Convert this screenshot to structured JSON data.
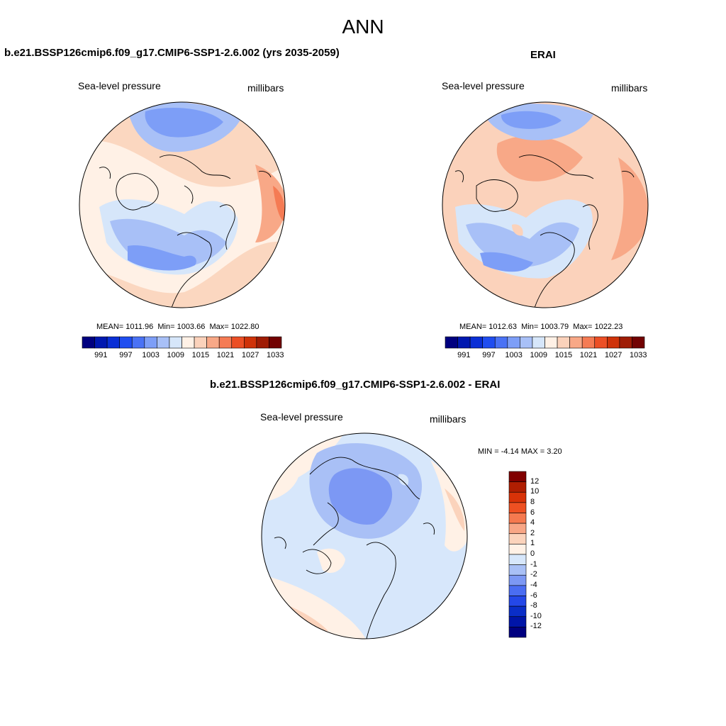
{
  "figure": {
    "title": "ANN"
  },
  "panels": [
    {
      "id": "model",
      "title": "b.e21.BSSP126cmip6.f09_g17.CMIP6-SSP1-2.6.002 (yrs 2035-2059)",
      "variable": "Sea-level pressure",
      "units": "millibars",
      "stats": {
        "mean_label": "MEAN=",
        "mean": "1011.96",
        "min_label": "Min=",
        "min": "1003.66",
        "max_label": "Max=",
        "max": "1022.80"
      }
    },
    {
      "id": "obs",
      "title": "ERAI",
      "variable": "Sea-level pressure",
      "units": "millibars",
      "stats": {
        "mean_label": "MEAN=",
        "mean": "1012.63",
        "min_label": "Min=",
        "min": "1003.79",
        "max_label": "Max=",
        "max": "1022.23"
      }
    },
    {
      "id": "diff",
      "title": "b.e21.BSSP126cmip6.f09_g17.CMIP6-SSP1-2.6.002 - ERAI",
      "variable": "Sea-level pressure",
      "units": "millibars",
      "stats": {
        "min_label": "MIN =",
        "min": "-4.14",
        "max_label": "MAX =",
        "max": "3.20"
      }
    }
  ],
  "colorbars": {
    "absolute": {
      "colors": [
        "#00007f",
        "#0018b0",
        "#0a2fd6",
        "#1f4df0",
        "#4a72f5",
        "#7d9ef7",
        "#a8c0f7",
        "#d6e6fa",
        "#fff1e6",
        "#fbd2bb",
        "#f8a887",
        "#f57b54",
        "#ec4f25",
        "#cf3209",
        "#9f1c05",
        "#720202"
      ],
      "labels": [
        "991",
        "997",
        "1003",
        "1009",
        "1015",
        "1021",
        "1027",
        "1033"
      ]
    },
    "difference": {
      "colors": [
        "#000080",
        "#0015a8",
        "#0a2ec8",
        "#2448e8",
        "#4a6df2",
        "#7c98f4",
        "#a9c0f6",
        "#d7e7fb",
        "#fff1e6",
        "#fbd3bc",
        "#f8a686",
        "#f5794f",
        "#ee5022",
        "#d83208",
        "#b01e02",
        "#800000"
      ],
      "labels": [
        "12",
        "10",
        "8",
        "6",
        "4",
        "2",
        "1",
        "0",
        "-1",
        "-2",
        "-4",
        "-6",
        "-8",
        "-10",
        "-12"
      ]
    }
  }
}
